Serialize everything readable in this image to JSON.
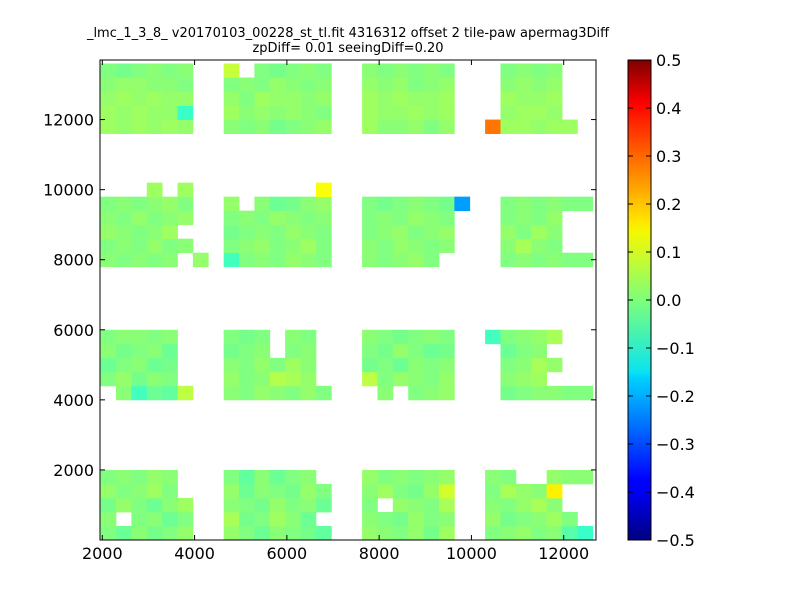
{
  "chart_data": {
    "type": "heatmap",
    "title": "_lmc_1_3_8_ v20170103_00228_st_tl.fit 4316312 offset 2 tile-paw apermag3Diff",
    "subtitle": "zpDiff= 0.01 seeingDiff=0.20",
    "xlabel": "",
    "ylabel": "",
    "xlim": [
      1950,
      12700
    ],
    "ylim": [
      0,
      13700
    ],
    "x_ticks": [
      2000,
      4000,
      6000,
      8000,
      10000,
      12000
    ],
    "x_tick_labels": [
      "2000",
      "4000",
      "6000",
      "8000",
      "10000",
      "12000"
    ],
    "y_ticks": [
      2000,
      4000,
      6000,
      8000,
      10000,
      12000
    ],
    "y_tick_labels": [
      "2000",
      "4000",
      "6000",
      "8000",
      "10000",
      "12000"
    ],
    "grid": false,
    "colormap": "jet",
    "colorbar": {
      "range": [
        -0.5,
        0.5
      ],
      "ticks": [
        0.5,
        0.4,
        0.3,
        0.2,
        0.1,
        0.0,
        -0.1,
        -0.2,
        -0.3,
        -0.4,
        -0.5
      ],
      "tick_labels": [
        "0.5",
        "0.4",
        "0.3",
        "0.2",
        "0.1",
        "0.0",
        "−0.1",
        "−0.2",
        "−0.3",
        "−0.4",
        "−0.5"
      ]
    },
    "cell_size": [
      333,
      400
    ],
    "rows_y": [
      200,
      600,
      1000,
      1400,
      1800,
      4200,
      4600,
      5000,
      5400,
      5800,
      8000,
      8400,
      8800,
      9200,
      9600,
      10000,
      11800,
      12200,
      12600,
      13000,
      13400
    ],
    "col_x": [
      2130,
      2463,
      2797,
      3130,
      3463,
      3797,
      4130,
      4797,
      5130,
      5463,
      5797,
      6130,
      6463,
      6797,
      7797,
      8130,
      8463,
      8797,
      9130,
      9463,
      9797,
      10463,
      10797,
      11130,
      11463,
      11797,
      12130,
      12463
    ],
    "rows": [
      [
        0.0,
        -0.02,
        0.01,
        -0.01,
        0.0,
        0.02,
        null,
        0.02,
        0.0,
        -0.02,
        0.01,
        0.0,
        -0.01,
        -0.03,
        0.02,
        0.01,
        0.0,
        0.02,
        -0.01,
        0.03,
        null,
        0.0,
        0.01,
        0.02,
        0.0,
        0.01,
        -0.04,
        -0.07
      ],
      [
        0.01,
        null,
        0.0,
        0.01,
        -0.02,
        0.0,
        null,
        0.04,
        -0.01,
        0.0,
        0.03,
        0.01,
        -0.02,
        null,
        0.01,
        0.0,
        -0.01,
        0.02,
        0.0,
        0.01,
        null,
        0.02,
        -0.01,
        0.0,
        0.01,
        0.03,
        0.0,
        null
      ],
      [
        -0.01,
        0.02,
        0.0,
        -0.02,
        0.01,
        0.03,
        null,
        0.01,
        0.0,
        -0.01,
        0.02,
        0.0,
        0.01,
        -0.02,
        0.0,
        null,
        0.02,
        0.01,
        0.0,
        0.04,
        null,
        0.01,
        0.0,
        0.02,
        0.04,
        0.01,
        null,
        null
      ],
      [
        0.02,
        0.0,
        0.01,
        0.03,
        0.0,
        null,
        null,
        0.02,
        -0.02,
        0.01,
        0.0,
        -0.01,
        0.02,
        0.0,
        0.01,
        0.03,
        0.0,
        -0.01,
        0.02,
        0.08,
        null,
        0.0,
        0.04,
        0.02,
        0.01,
        0.14,
        null,
        null
      ],
      [
        0.0,
        0.01,
        0.0,
        0.02,
        0.01,
        null,
        null,
        0.0,
        -0.03,
        0.01,
        -0.02,
        0.0,
        0.01,
        null,
        0.02,
        0.0,
        0.01,
        0.0,
        0.01,
        0.02,
        null,
        0.01,
        0.0,
        null,
        null,
        0.02,
        0.01,
        0.01
      ],
      [
        null,
        0.01,
        -0.06,
        -0.02,
        -0.03,
        0.06,
        null,
        0.01,
        0.0,
        0.02,
        0.01,
        0.0,
        0.02,
        0.0,
        null,
        0.01,
        null,
        0.0,
        0.01,
        0.02,
        null,
        null,
        -0.01,
        0.0,
        0.01,
        0.01,
        0.0,
        0.0
      ],
      [
        0.0,
        0.02,
        -0.01,
        0.01,
        0.0,
        null,
        null,
        0.02,
        0.0,
        0.01,
        0.05,
        0.04,
        0.02,
        null,
        0.06,
        0.0,
        0.02,
        0.01,
        0.0,
        0.02,
        null,
        null,
        0.01,
        0.02,
        0.03,
        null,
        null,
        null
      ],
      [
        -0.02,
        0.0,
        0.01,
        -0.02,
        -0.01,
        null,
        null,
        0.01,
        0.0,
        0.02,
        0.0,
        0.03,
        0.01,
        null,
        -0.01,
        0.0,
        -0.02,
        0.01,
        0.0,
        0.01,
        null,
        null,
        0.0,
        0.01,
        0.04,
        0.02,
        null,
        null
      ],
      [
        0.01,
        -0.01,
        0.0,
        0.01,
        -0.02,
        null,
        null,
        -0.01,
        0.0,
        0.01,
        null,
        0.0,
        0.01,
        null,
        0.0,
        -0.01,
        0.02,
        0.0,
        -0.02,
        -0.01,
        null,
        null,
        -0.02,
        0.0,
        0.01,
        null,
        null,
        null
      ],
      [
        0.0,
        0.01,
        0.01,
        0.0,
        0.01,
        null,
        null,
        0.0,
        -0.01,
        0.0,
        null,
        0.01,
        0.0,
        null,
        0.01,
        0.0,
        -0.01,
        0.0,
        0.01,
        0.0,
        null,
        -0.06,
        0.0,
        0.01,
        0.02,
        0.04,
        null,
        null
      ],
      [
        0.01,
        0.0,
        0.01,
        0.0,
        0.01,
        null,
        0.02,
        -0.06,
        0.0,
        0.01,
        0.0,
        0.02,
        0.01,
        0.0,
        0.01,
        0.0,
        0.01,
        0.02,
        0.0,
        null,
        null,
        null,
        0.0,
        0.01,
        0.0,
        0.01,
        0.0,
        0.0
      ],
      [
        0.0,
        0.01,
        0.0,
        0.02,
        0.0,
        0.01,
        null,
        0.0,
        0.01,
        0.02,
        0.0,
        0.01,
        0.03,
        0.0,
        0.01,
        0.0,
        0.02,
        0.01,
        0.0,
        0.01,
        null,
        null,
        0.01,
        0.04,
        0.01,
        0.0,
        null,
        null
      ],
      [
        0.02,
        0.01,
        0.0,
        0.01,
        0.03,
        null,
        null,
        -0.01,
        0.0,
        0.01,
        0.0,
        0.02,
        0.01,
        0.0,
        0.0,
        0.01,
        0.02,
        0.0,
        0.01,
        0.02,
        null,
        null,
        0.02,
        0.0,
        0.03,
        0.01,
        null,
        null
      ],
      [
        0.01,
        0.0,
        0.02,
        0.0,
        0.01,
        0.02,
        null,
        0.0,
        0.01,
        0.0,
        0.02,
        0.01,
        0.0,
        0.01,
        0.0,
        0.01,
        0.0,
        0.02,
        0.01,
        0.0,
        null,
        null,
        0.0,
        0.01,
        0.0,
        0.02,
        null,
        null
      ],
      [
        0.0,
        0.01,
        0.0,
        0.01,
        0.02,
        0.0,
        null,
        0.02,
        null,
        0.01,
        -0.02,
        -0.01,
        0.01,
        0.02,
        0.0,
        -0.01,
        0.0,
        0.01,
        0.0,
        -0.01,
        -0.22,
        null,
        0.0,
        0.01,
        0.0,
        0.01,
        0.0,
        0.0
      ],
      [
        null,
        null,
        null,
        0.03,
        null,
        0.03,
        null,
        null,
        null,
        null,
        null,
        null,
        null,
        0.12,
        null,
        null,
        null,
        null,
        null,
        null,
        null,
        null,
        null,
        null,
        null,
        null,
        null,
        null
      ],
      [
        0.03,
        0.02,
        0.03,
        0.02,
        0.03,
        0.02,
        null,
        0.01,
        0.0,
        0.01,
        -0.01,
        0.0,
        0.01,
        0.02,
        0.03,
        0.01,
        0.01,
        0.02,
        0.0,
        0.02,
        null,
        0.26,
        0.03,
        0.03,
        0.02,
        0.03,
        0.03,
        null
      ],
      [
        0.03,
        0.02,
        0.03,
        0.02,
        0.02,
        -0.07,
        null,
        0.03,
        0.01,
        0.02,
        0.01,
        0.02,
        0.01,
        0.0,
        0.03,
        0.02,
        0.02,
        0.03,
        0.02,
        0.03,
        null,
        null,
        0.02,
        0.03,
        0.03,
        0.02,
        null,
        null
      ],
      [
        0.02,
        0.03,
        0.02,
        0.03,
        0.02,
        0.02,
        null,
        0.02,
        0.0,
        0.03,
        0.02,
        0.02,
        0.01,
        0.02,
        0.03,
        0.02,
        0.03,
        0.02,
        0.02,
        0.03,
        null,
        null,
        0.03,
        0.02,
        0.02,
        0.03,
        null,
        null
      ],
      [
        0.01,
        0.02,
        0.02,
        0.01,
        0.01,
        0.0,
        null,
        0.0,
        0.01,
        0.0,
        0.02,
        0.01,
        0.0,
        0.01,
        0.02,
        0.01,
        0.02,
        0.0,
        0.01,
        0.02,
        null,
        null,
        0.01,
        0.02,
        0.01,
        0.02,
        null,
        null
      ],
      [
        0.0,
        -0.01,
        0.0,
        0.01,
        0.0,
        0.01,
        null,
        0.07,
        null,
        0.0,
        -0.01,
        0.0,
        0.01,
        0.0,
        0.01,
        0.0,
        0.01,
        0.0,
        0.01,
        0.0,
        null,
        null,
        0.0,
        0.01,
        0.0,
        0.01,
        null,
        null
      ]
    ]
  }
}
